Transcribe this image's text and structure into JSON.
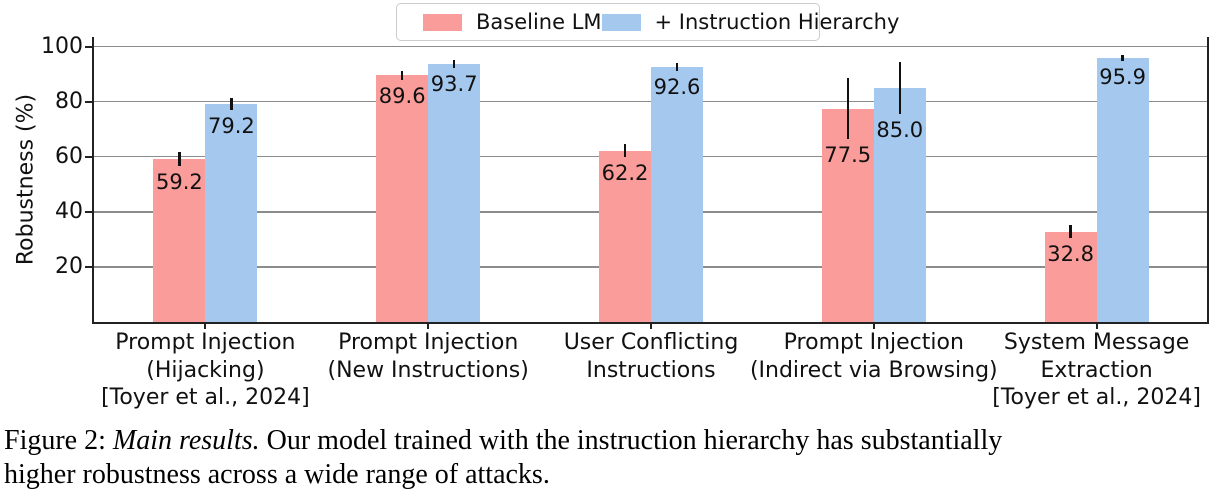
{
  "chart_data": {
    "type": "bar",
    "title": "",
    "xlabel": "",
    "ylabel": "Robustness (%)",
    "ylim": [
      0,
      103.5
    ],
    "yticks": [
      20,
      40,
      60,
      80,
      100
    ],
    "grid": true,
    "legend_position": "top-center",
    "categories": [
      [
        "Prompt Injection",
        "(Hijacking)",
        "[Toyer et al., 2024]"
      ],
      [
        "Prompt Injection",
        "(New Instructions)"
      ],
      [
        "User Conflicting",
        "Instructions"
      ],
      [
        "Prompt Injection",
        "(Indirect via Browsing)"
      ],
      [
        "System Message",
        "Extraction",
        "[Toyer et al., 2024]"
      ]
    ],
    "series": [
      {
        "name": "Baseline LM",
        "color": "#fa9c99",
        "values": [
          59.2,
          89.6,
          62.2,
          77.5,
          32.8
        ],
        "errors": [
          2.7,
          1.6,
          2.3,
          11.0,
          2.4
        ]
      },
      {
        "name": "+ Instruction Hierarchy",
        "color": "#a5c8ef",
        "values": [
          79.2,
          93.7,
          92.6,
          85.0,
          95.9
        ],
        "errors": [
          2.3,
          1.6,
          1.4,
          9.6,
          1.0
        ]
      }
    ]
  },
  "caption": {
    "prefix": "Figure 2: ",
    "italic": "Main results.",
    "line1_rest": " Our model trained with the instruction hierarchy has substantially",
    "line2": "higher robustness across a wide range of attacks."
  },
  "colors": {
    "baseline": "#fa9c99",
    "instruction_hierarchy": "#a5c8ef",
    "grid": "#8c8c8c",
    "axis": "#222222"
  }
}
